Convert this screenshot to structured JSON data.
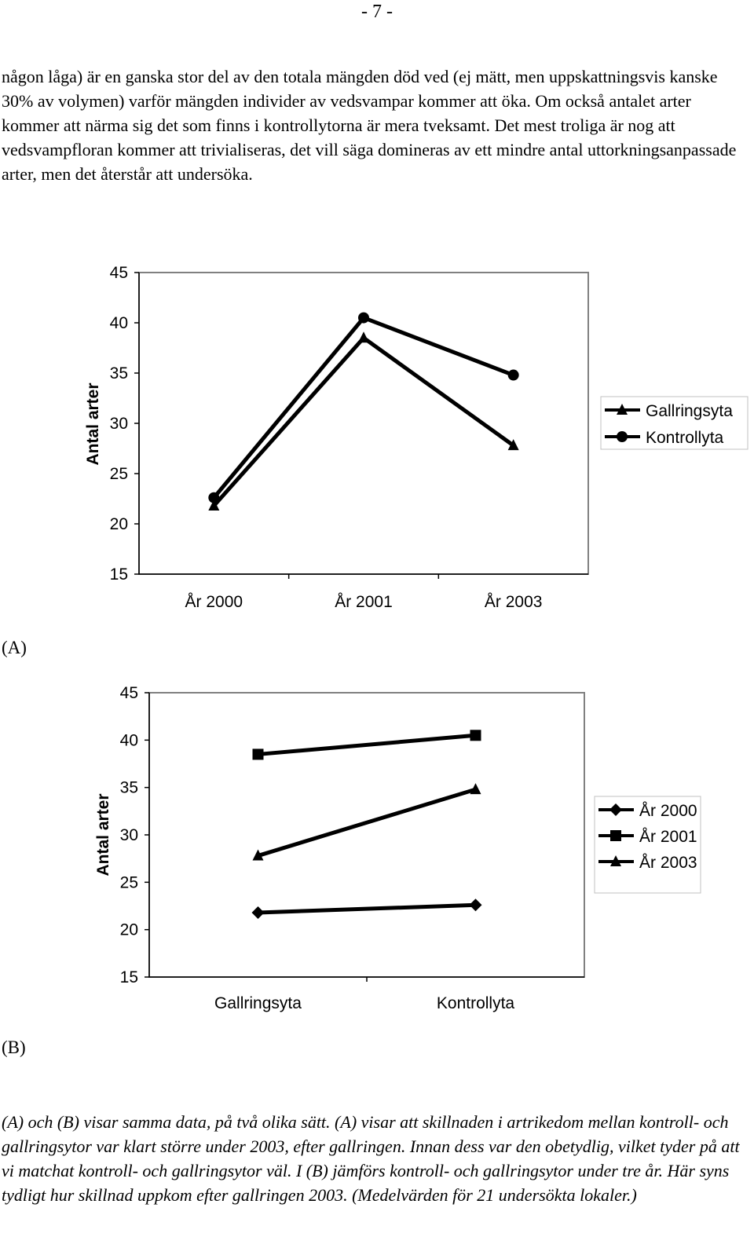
{
  "page_number": "- 7 -",
  "body_text": "någon låga) är en ganska stor del av den totala mängden död ved (ej mätt, men uppskattningsvis kanske 30% av volymen) varför mängden individer av vedsvampar kommer att öka. Om också antalet arter kommer att närma sig det som finns i kontrollytorna är mera tveksamt. Det mest troliga är nog att vedsvampfloran kommer att trivialiseras, det vill säga domineras av ett mindre antal uttorkningsanpassade arter, men det återstår att undersöka.",
  "label_a": "(A)",
  "label_b": "(B)",
  "caption": "(A) och (B) visar samma data, på två olika sätt. (A) visar att skillnaden i artrikedom mellan kontroll- och gallringsytor var klart större under 2003, efter gallringen. Innan dess var den obetydlig, vilket tyder på att vi matchat kontroll- och gallringsytor väl. I (B) jämförs kontroll- och gallringsytor under tre år. Här syns tydligt hur skillnad uppkom efter gallringen 2003. (Medelvärden för 21 undersökta lokaler.)",
  "chart_data": [
    {
      "type": "line",
      "categories": [
        "År 2000",
        "År 2001",
        "År 2003"
      ],
      "series": [
        {
          "name": "Gallringsyta",
          "values": [
            21.8,
            38.5,
            27.8
          ],
          "marker": "triangle"
        },
        {
          "name": "Kontrollyta",
          "values": [
            22.6,
            40.5,
            34.8
          ],
          "marker": "circle"
        }
      ],
      "ylabel": "Antal arter",
      "ylim": [
        15,
        45
      ],
      "yticks": [
        "45",
        "40",
        "35",
        "30",
        "25",
        "20",
        "15"
      ],
      "legend": "right",
      "grid": false
    },
    {
      "type": "line",
      "categories": [
        "Gallringsyta",
        "Kontrollyta"
      ],
      "series": [
        {
          "name": "År 2000",
          "values": [
            21.8,
            22.6
          ],
          "marker": "diamond"
        },
        {
          "name": "År 2001",
          "values": [
            38.5,
            40.5
          ],
          "marker": "square"
        },
        {
          "name": "År 2003",
          "values": [
            27.8,
            34.8
          ],
          "marker": "triangle"
        }
      ],
      "ylabel": "Antal arter",
      "ylim": [
        15,
        45
      ],
      "yticks": [
        "45",
        "40",
        "35",
        "30",
        "25",
        "20",
        "15"
      ],
      "legend": "right",
      "grid": false
    }
  ]
}
